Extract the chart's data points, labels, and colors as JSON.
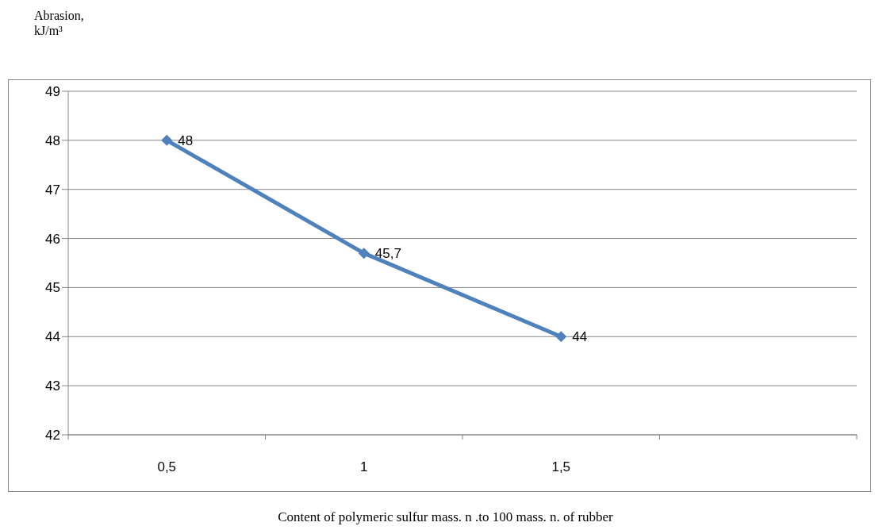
{
  "chart_data": {
    "type": "line",
    "ylabel": "Abrasion, kJ/m³",
    "xlabel": "Content of polymeric sulfur mass. n .to 100 mass. n. of rubber",
    "categories": [
      "0,5",
      "1",
      "1,5",
      null
    ],
    "series": [
      {
        "color": "#4f81bd",
        "values": [
          48,
          45.7,
          44,
          null
        ],
        "value_labels": [
          "48",
          "45,7",
          "44",
          null
        ]
      }
    ],
    "ylim": [
      42,
      49
    ],
    "yticks": [
      42,
      43,
      44,
      45,
      46,
      47,
      48,
      49
    ],
    "grid": "y",
    "marker": "diamond",
    "line_style": "solid",
    "legend": false
  }
}
